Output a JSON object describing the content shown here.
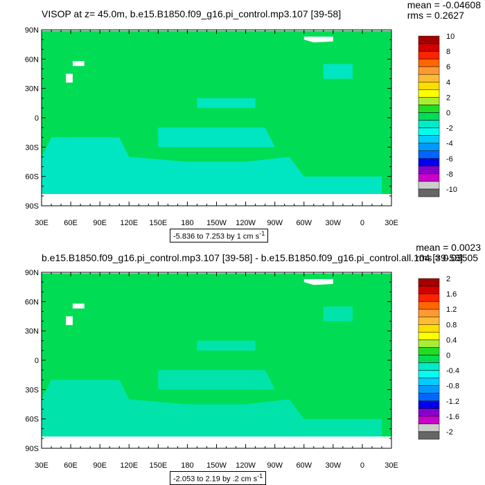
{
  "panels": [
    {
      "title": "VISOP at z=  45.0m, b.e15.B1850.f09_g16.pi_control.mp3.107 [39-58]",
      "stats": [
        "mean = -0.04608",
        "rms = 0.2627"
      ],
      "info": "-5.836 to 7.253 by 1 cm s",
      "info_sup": "-1",
      "colorbar_labels": [
        "10",
        "8",
        "6",
        "4",
        "2",
        "0",
        "-2",
        "-4",
        "-6",
        "-8",
        "-10"
      ]
    },
    {
      "title": "b.e15.B1850.f09_g16.pi_control.mp3.107 [39-58] - b.e15.B1850.f09_g16.pi_control.all.104 [39-58]",
      "stats": [
        "mean = 0.0023",
        "rms = 0.03505"
      ],
      "info": "-2.053 to 2.19 by .2 cm s",
      "info_sup": "-1",
      "colorbar_labels": [
        "2",
        "1.6",
        "1.2",
        "0.8",
        "0.4",
        "0",
        "-0.4",
        "-0.8",
        "-1.2",
        "-1.6",
        "-2"
      ]
    }
  ],
  "axes": {
    "lat_labels": [
      "90N",
      "60N",
      "30N",
      "0",
      "30S",
      "60S",
      "90S"
    ],
    "lon_labels": [
      "30E",
      "60E",
      "90E",
      "120E",
      "150E",
      "180",
      "150W",
      "120W",
      "90W",
      "60W",
      "30W",
      "0",
      "30E"
    ]
  },
  "colors": {
    "land": "#ffffff",
    "ocean_zero": "#00dd55",
    "ocean_neg": "#00e6c8",
    "colorbar": [
      "#a50000",
      "#d40000",
      "#ff2200",
      "#ff6600",
      "#ff9933",
      "#ffbb33",
      "#ffdd00",
      "#ffff00",
      "#aaee33",
      "#22dd22",
      "#00dd55",
      "#00ecc8",
      "#00ffee",
      "#00ccff",
      "#0099ff",
      "#0066ff",
      "#0000ee",
      "#8800cc",
      "#cc00cc",
      "#cccccc",
      "#666666"
    ]
  }
}
